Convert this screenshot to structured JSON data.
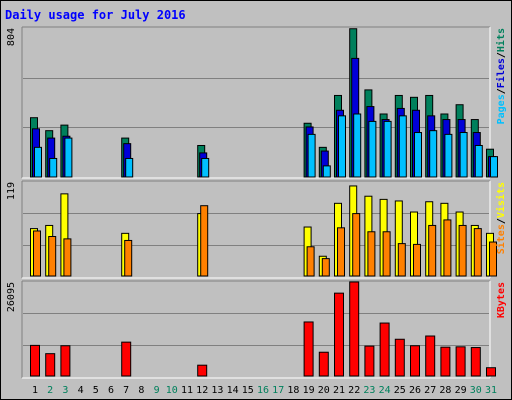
{
  "title": "Daily usage for July 2016",
  "colors": {
    "hits": "#00805c",
    "files": "#0000d8",
    "pages": "#00c0ff",
    "visits": "#ffff00",
    "sites": "#ff8000",
    "kbytes": "#ff0000",
    "weekend": "#00805c",
    "weekday": "#000000"
  },
  "chart_data": [
    {
      "type": "bar",
      "name": "hits-files-pages",
      "ymax": 804,
      "ymax_label": "804",
      "legend": [
        "Pages",
        "/",
        "Files",
        "/",
        "Hits"
      ],
      "categories": [
        "1",
        "2",
        "3",
        "4",
        "5",
        "6",
        "7",
        "8",
        "9",
        "10",
        "11",
        "12",
        "13",
        "14",
        "15",
        "16",
        "17",
        "18",
        "19",
        "20",
        "21",
        "22",
        "23",
        "24",
        "25",
        "26",
        "27",
        "28",
        "29",
        "30",
        "31"
      ],
      "series": [
        {
          "name": "Hits",
          "values": [
            320,
            250,
            280,
            0,
            0,
            0,
            210,
            0,
            0,
            0,
            0,
            170,
            0,
            0,
            0,
            0,
            0,
            0,
            290,
            160,
            440,
            800,
            470,
            340,
            440,
            430,
            440,
            340,
            390,
            310,
            150
          ]
        },
        {
          "name": "Files",
          "values": [
            260,
            210,
            220,
            0,
            0,
            0,
            180,
            0,
            0,
            0,
            0,
            130,
            0,
            0,
            0,
            0,
            0,
            0,
            270,
            140,
            360,
            640,
            380,
            310,
            370,
            360,
            330,
            310,
            310,
            240,
            110
          ]
        },
        {
          "name": "Pages",
          "values": [
            160,
            100,
            210,
            0,
            0,
            0,
            100,
            0,
            0,
            0,
            0,
            100,
            0,
            0,
            0,
            0,
            0,
            0,
            230,
            60,
            330,
            340,
            300,
            300,
            330,
            240,
            250,
            230,
            240,
            170,
            110
          ]
        }
      ]
    },
    {
      "type": "bar",
      "name": "visits-sites",
      "ymax": 119,
      "ymax_label": "119",
      "legend": [
        "Sites",
        "/",
        "Visits"
      ],
      "categories": [
        "1",
        "2",
        "3",
        "4",
        "5",
        "6",
        "7",
        "8",
        "9",
        "10",
        "11",
        "12",
        "13",
        "14",
        "15",
        "16",
        "17",
        "18",
        "19",
        "20",
        "21",
        "22",
        "23",
        "24",
        "25",
        "26",
        "27",
        "28",
        "29",
        "30",
        "31"
      ],
      "series": [
        {
          "name": "Visits",
          "values": [
            60,
            64,
            104,
            0,
            0,
            0,
            54,
            0,
            0,
            0,
            0,
            79,
            0,
            0,
            0,
            0,
            0,
            0,
            62,
            25,
            92,
            114,
            101,
            97,
            95,
            81,
            94,
            92,
            81,
            64,
            54
          ]
        },
        {
          "name": "Sites",
          "values": [
            57,
            50,
            47,
            0,
            0,
            0,
            45,
            0,
            0,
            0,
            0,
            89,
            0,
            0,
            0,
            0,
            0,
            0,
            37,
            22,
            61,
            79,
            56,
            56,
            41,
            40,
            64,
            71,
            64,
            60,
            43
          ]
        }
      ]
    },
    {
      "type": "bar",
      "name": "kbytes",
      "ymax": 26095,
      "ymax_label": "26095",
      "legend": [
        "KBytes"
      ],
      "categories": [
        "1",
        "2",
        "3",
        "4",
        "5",
        "6",
        "7",
        "8",
        "9",
        "10",
        "11",
        "12",
        "13",
        "14",
        "15",
        "16",
        "17",
        "18",
        "19",
        "20",
        "21",
        "22",
        "23",
        "24",
        "25",
        "26",
        "27",
        "28",
        "29",
        "30",
        "31"
      ],
      "series": [
        {
          "name": "KBytes",
          "values": [
            8500,
            6200,
            8400,
            0,
            0,
            0,
            9400,
            0,
            0,
            0,
            0,
            3000,
            0,
            0,
            0,
            0,
            0,
            0,
            15000,
            6600,
            23000,
            26095,
            8300,
            14700,
            10200,
            8400,
            11100,
            8000,
            8100,
            7900,
            2300
          ]
        }
      ]
    }
  ],
  "x_labels": [
    "1",
    "2",
    "3",
    "4",
    "5",
    "6",
    "7",
    "8",
    "9",
    "10",
    "11",
    "12",
    "13",
    "14",
    "15",
    "16",
    "17",
    "18",
    "19",
    "20",
    "21",
    "22",
    "23",
    "24",
    "25",
    "26",
    "27",
    "28",
    "29",
    "30",
    "31"
  ],
  "weekend_days": [
    2,
    3,
    9,
    10,
    16,
    17,
    23,
    24,
    30,
    31
  ]
}
